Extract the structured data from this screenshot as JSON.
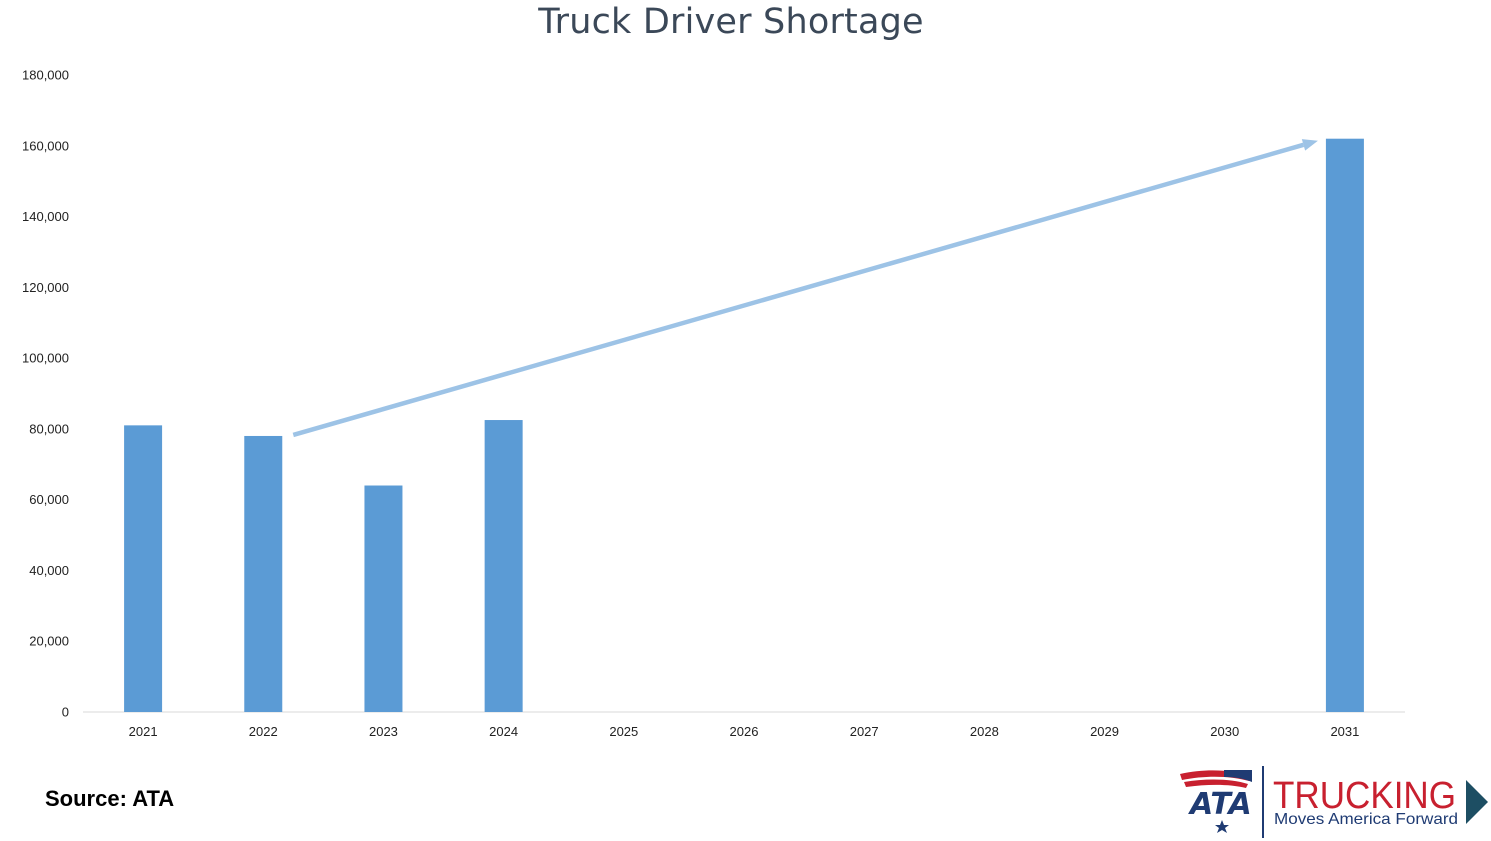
{
  "chart_data": {
    "type": "bar",
    "title": "Truck Driver Shortage",
    "categories": [
      "2021",
      "2022",
      "2023",
      "2024",
      "2025",
      "2026",
      "2027",
      "2028",
      "2029",
      "2030",
      "2031"
    ],
    "values": [
      81000,
      78000,
      64000,
      82500,
      null,
      null,
      null,
      null,
      null,
      null,
      162000
    ],
    "ylim": [
      0,
      180000
    ],
    "yticks": [
      0,
      20000,
      40000,
      60000,
      80000,
      100000,
      120000,
      140000,
      160000,
      180000
    ],
    "ytick_labels": [
      "0",
      "20,000",
      "40,000",
      "60,000",
      "80,000",
      "100,000",
      "120,000",
      "140,000",
      "160,000",
      "180,000"
    ],
    "grid": false,
    "bar_color": "#5b9bd5",
    "annotation": {
      "type": "arrow",
      "from": {
        "x": "2022",
        "y": 78000
      },
      "to": {
        "x": "2031",
        "y": 162000
      },
      "color": "#9dc3e6"
    }
  },
  "source_note": "Source: ATA",
  "logo": {
    "ata_text": "ATA",
    "trucking_text": "TRUCKING",
    "tagline": "Moves America Forward",
    "red": "#c8202f",
    "navy": "#1f3b73",
    "teal": "#1d4e63"
  }
}
